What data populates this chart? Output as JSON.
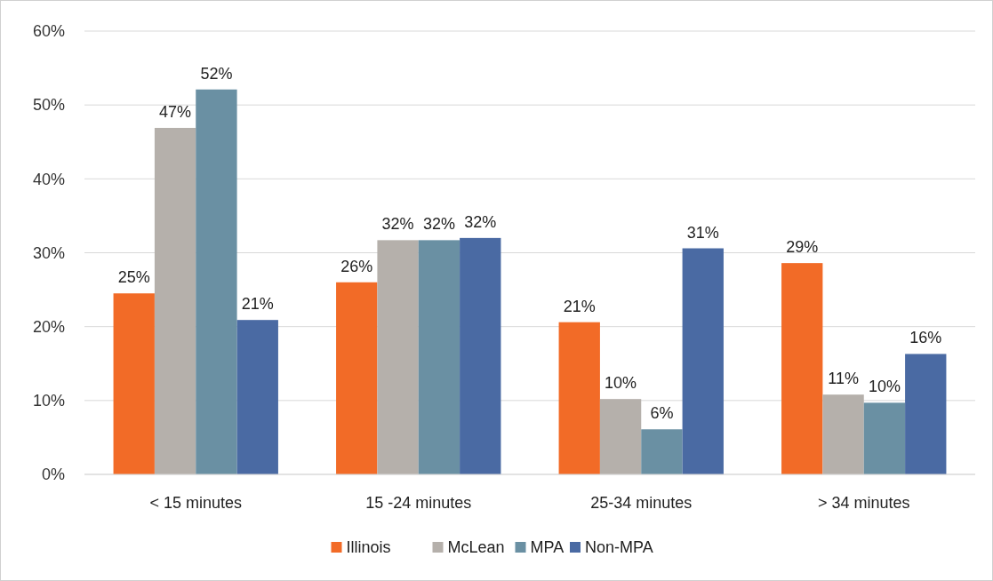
{
  "chart_data": {
    "type": "bar",
    "categories": [
      "< 15 minutes",
      "15 -24 minutes",
      "25-34 minutes",
      "> 34 minutes"
    ],
    "series": [
      {
        "name": "Illinois",
        "color": "#f26b27",
        "values": [
          24.5,
          26.0,
          20.6,
          28.6
        ],
        "value_labels": [
          "25%",
          "26%",
          "21%",
          "29%"
        ]
      },
      {
        "name": "McLean",
        "color": "#b5b0ab",
        "values": [
          46.9,
          31.7,
          10.2,
          10.8
        ],
        "value_labels": [
          "47%",
          "32%",
          "10%",
          "11%"
        ]
      },
      {
        "name": "MPA",
        "color": "#6a90a3",
        "values": [
          52.1,
          31.7,
          6.1,
          9.7
        ],
        "value_labels": [
          "52%",
          "32%",
          "6%",
          "10%"
        ]
      },
      {
        "name": "Non-MPA",
        "color": "#4a6aa3",
        "values": [
          20.9,
          32.0,
          30.6,
          16.3
        ],
        "value_labels": [
          "21%",
          "32%",
          "31%",
          "16%"
        ]
      }
    ],
    "ylim": [
      0,
      60
    ],
    "yticks": [
      {
        "value": 0,
        "label": "0%"
      },
      {
        "value": 10,
        "label": "10%"
      },
      {
        "value": 20,
        "label": "20%"
      },
      {
        "value": 30,
        "label": "30%"
      },
      {
        "value": 40,
        "label": "40%"
      },
      {
        "value": 50,
        "label": "50%"
      },
      {
        "value": 60,
        "label": "60%"
      }
    ],
    "grid": "y",
    "legend": "bottom"
  }
}
